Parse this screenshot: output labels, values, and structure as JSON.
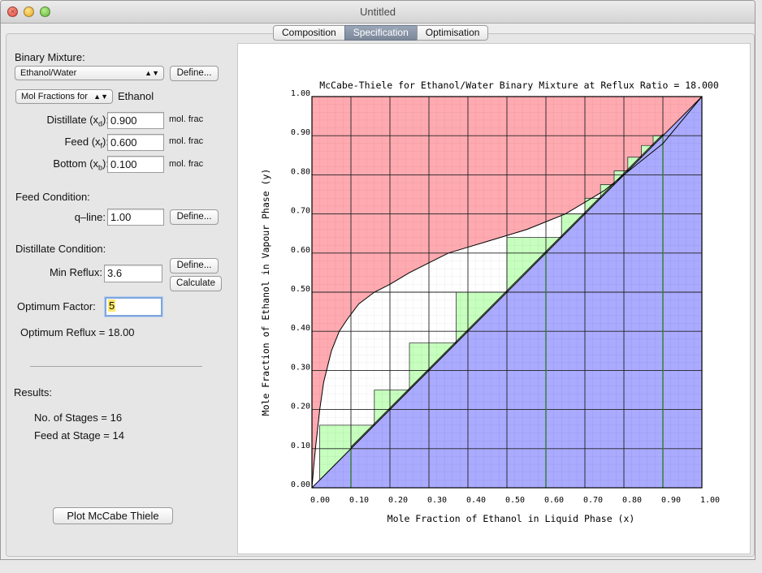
{
  "window": {
    "title": "Untitled"
  },
  "tabs": [
    {
      "label": "Composition",
      "active": false
    },
    {
      "label": "Specification",
      "active": true
    },
    {
      "label": "Optimisation",
      "active": false
    }
  ],
  "left": {
    "binary_mixture_label": "Binary Mixture:",
    "mixture_value": "Ethanol/Water",
    "define_label": "Define...",
    "calculate_label": "Calculate",
    "basis_value": "Mol Fractions for",
    "basis_component": "Ethanol",
    "distillate": {
      "label": "Distillate (x",
      "sub": "d",
      "tail": "):",
      "value": "0.900",
      "unit": "mol. frac"
    },
    "feed": {
      "label": "Feed (x",
      "sub": "f",
      "tail": "):",
      "value": "0.600",
      "unit": "mol. frac"
    },
    "bottom": {
      "label": "Bottom (x",
      "sub": "b",
      "tail": "):",
      "value": "0.100",
      "unit": "mol. frac"
    },
    "feed_condition_label": "Feed Condition:",
    "qline_label": "q–line:",
    "qline_value": "1.00",
    "distillate_condition_label": "Distillate Condition:",
    "min_reflux_label": "Min Reflux:",
    "min_reflux_value": "3.6",
    "optimum_factor_label": "Optimum Factor:",
    "optimum_factor_value": "5",
    "optimum_reflux_text": "Optimum Reflux = 18.00",
    "results_label": "Results:",
    "stages_text": "No. of Stages = 16",
    "feed_stage_text": "Feed at Stage = 14",
    "plot_button_label": "Plot McCabe Thiele"
  },
  "chart_data": {
    "type": "line",
    "title": "McCabe-Thiele for Ethanol/Water Binary Mixture at Reflux Ratio = 18.000",
    "xlabel": "Mole Fraction of Ethanol in Liquid Phase (x)",
    "ylabel": "Mole Fraction of Ethanol in Vapour Phase (y)",
    "xlim": [
      0,
      1
    ],
    "ylim": [
      0,
      1
    ],
    "xticks": [
      "0.00",
      "0.10",
      "0.20",
      "0.30",
      "0.40",
      "0.50",
      "0.60",
      "0.70",
      "0.80",
      "0.90",
      "1.00"
    ],
    "yticks": [
      "0.00",
      "0.10",
      "0.20",
      "0.30",
      "0.40",
      "0.50",
      "0.60",
      "0.70",
      "0.80",
      "0.90",
      "1.00"
    ],
    "grid": true,
    "colors": {
      "above_equilibrium": "#ffaab0",
      "below_diagonal": "#aaaaff",
      "stages": "#c6ffbe",
      "feed_lines": "#2e7d2e"
    },
    "equilibrium_curve": {
      "x": [
        0,
        0.005,
        0.01,
        0.02,
        0.03,
        0.05,
        0.07,
        0.09,
        0.12,
        0.16,
        0.2,
        0.25,
        0.3,
        0.35,
        0.4,
        0.45,
        0.5,
        0.55,
        0.6,
        0.65,
        0.7,
        0.75,
        0.8,
        0.85,
        0.9,
        0.95,
        1.0
      ],
      "y": [
        0,
        0.06,
        0.11,
        0.2,
        0.27,
        0.35,
        0.4,
        0.43,
        0.47,
        0.5,
        0.52,
        0.55,
        0.575,
        0.6,
        0.615,
        0.63,
        0.645,
        0.66,
        0.68,
        0.7,
        0.73,
        0.76,
        0.8,
        0.84,
        0.88,
        0.94,
        1.0
      ]
    },
    "operating_line_points": [
      [
        0.1,
        0.1
      ],
      [
        0.6,
        0.6
      ],
      [
        0.9,
        0.9
      ]
    ],
    "stage_steps_x": [
      0.9,
      0.875,
      0.845,
      0.81,
      0.775,
      0.74,
      0.7,
      0.64,
      0.5,
      0.37,
      0.25,
      0.16,
      0.02
    ],
    "feed_lines_x": [
      0.1,
      0.6,
      0.9
    ]
  }
}
